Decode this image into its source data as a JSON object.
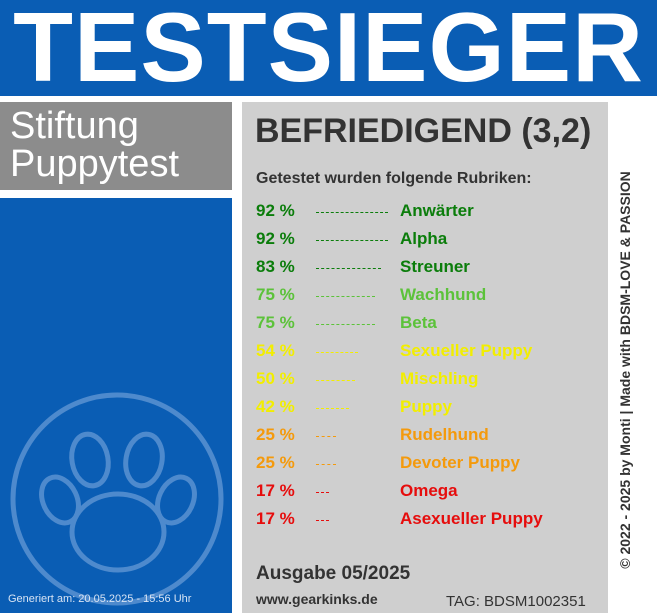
{
  "banner": {
    "title": "TESTSIEGER"
  },
  "brand": {
    "line1": "Stiftung",
    "line2": "Puppytest"
  },
  "verdict": "BEFRIEDIGEND (3,2)",
  "subtitle": "Getestet wurden folgende Rubriken:",
  "rubrics": [
    {
      "percent": "92 %",
      "label": "Anwärter",
      "value": 92,
      "color": "#0b7d0b"
    },
    {
      "percent": "92 %",
      "label": "Alpha",
      "value": 92,
      "color": "#0b7d0b"
    },
    {
      "percent": "83 %",
      "label": "Streuner",
      "value": 83,
      "color": "#0b7d0b"
    },
    {
      "percent": "75 %",
      "label": "Wachhund",
      "value": 75,
      "color": "#5cc23a"
    },
    {
      "percent": "75 %",
      "label": "Beta",
      "value": 75,
      "color": "#5cc23a"
    },
    {
      "percent": "54 %",
      "label": "Sexueller Puppy",
      "value": 54,
      "color": "#f2ee00"
    },
    {
      "percent": "50 %",
      "label": "Mischling",
      "value": 50,
      "color": "#f2ee00"
    },
    {
      "percent": "42 %",
      "label": "Puppy",
      "value": 42,
      "color": "#f2ee00"
    },
    {
      "percent": "25 %",
      "label": "Rudelhund",
      "value": 25,
      "color": "#f49a0c"
    },
    {
      "percent": "25 %",
      "label": "Devoter Puppy",
      "value": 25,
      "color": "#f49a0c"
    },
    {
      "percent": "17 %",
      "label": "Omega",
      "value": 17,
      "color": "#e60d0d"
    },
    {
      "percent": "17 %",
      "label": "Asexueller Puppy",
      "value": 17,
      "color": "#e60d0d"
    }
  ],
  "issue": "Ausgabe 05/2025",
  "website": "www.gearkinks.de",
  "tag": "TAG: BDSM1002351",
  "generated": "Generiert am: 20.05.2025 - 15:56 Uhr",
  "copyright": "© 2022 - 2025 by Monti | Made with BDSM-LOVE & PASSION",
  "colors": {
    "blue": "#0a5db4",
    "grey_panel": "#cfcfcf",
    "brand_grey": "#8c8c8c"
  },
  "icons": {
    "paw": "paw-print-icon"
  }
}
